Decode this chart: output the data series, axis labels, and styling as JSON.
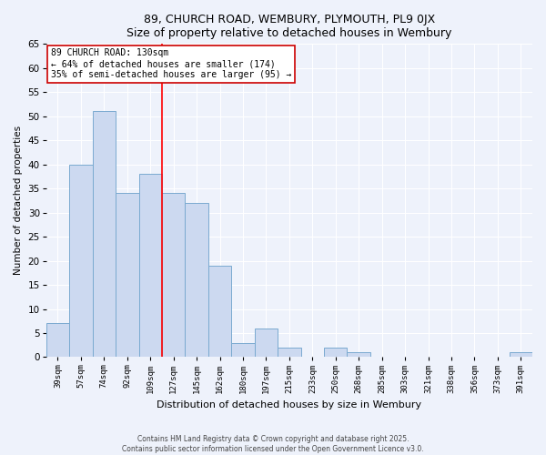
{
  "title": "89, CHURCH ROAD, WEMBURY, PLYMOUTH, PL9 0JX",
  "subtitle": "Size of property relative to detached houses in Wembury",
  "xlabel": "Distribution of detached houses by size in Wembury",
  "ylabel": "Number of detached properties",
  "bar_color": "#ccd9f0",
  "bar_edge_color": "#7aaad0",
  "background_color": "#eef2fb",
  "grid_color": "#ffffff",
  "categories": [
    "39sqm",
    "57sqm",
    "74sqm",
    "92sqm",
    "109sqm",
    "127sqm",
    "145sqm",
    "162sqm",
    "180sqm",
    "197sqm",
    "215sqm",
    "233sqm",
    "250sqm",
    "268sqm",
    "285sqm",
    "303sqm",
    "321sqm",
    "338sqm",
    "356sqm",
    "373sqm",
    "391sqm"
  ],
  "values": [
    7,
    40,
    51,
    34,
    38,
    34,
    32,
    19,
    3,
    6,
    2,
    0,
    2,
    1,
    0,
    0,
    0,
    0,
    0,
    0,
    1
  ],
  "ylim": [
    0,
    65
  ],
  "yticks": [
    0,
    5,
    10,
    15,
    20,
    25,
    30,
    35,
    40,
    45,
    50,
    55,
    60,
    65
  ],
  "red_line_x": 4.5,
  "annotation_title": "89 CHURCH ROAD: 130sqm",
  "annotation_line1": "← 64% of detached houses are smaller (174)",
  "annotation_line2": "35% of semi-detached houses are larger (95) →",
  "footer1": "Contains HM Land Registry data © Crown copyright and database right 2025.",
  "footer2": "Contains public sector information licensed under the Open Government Licence v3.0."
}
